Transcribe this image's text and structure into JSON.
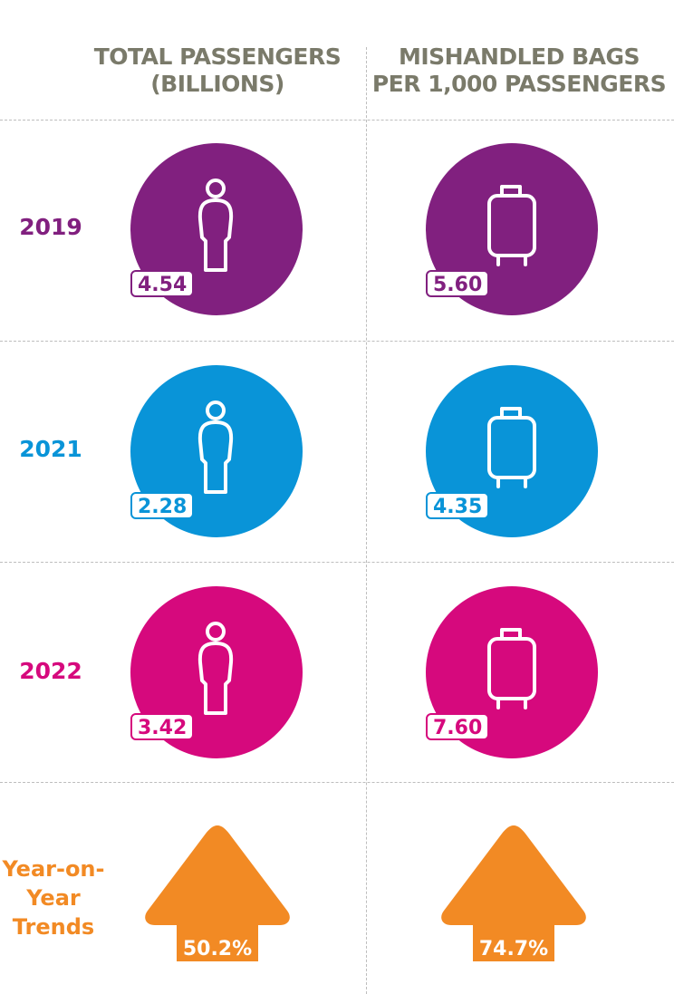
{
  "chart_data": {
    "type": "table",
    "columns": [
      {
        "header_line1": "TOTAL PASSENGERS",
        "header_line2": "(BILLIONS)"
      },
      {
        "header_line1": "MISHANDLED BAGS",
        "header_line2": "PER 1,000 PASSENGERS"
      }
    ],
    "rows": [
      {
        "label": "2019",
        "color": "#81207f",
        "values": [
          "4.54",
          "5.60"
        ]
      },
      {
        "label": "2021",
        "color": "#0994d8",
        "values": [
          "2.28",
          "4.35"
        ]
      },
      {
        "label": "2022",
        "color": "#d6097d",
        "values": [
          "3.42",
          "7.60"
        ]
      }
    ],
    "trend": {
      "label_lines": [
        "Year-on-",
        "Year",
        "Trends"
      ],
      "color": "#f28a24",
      "values": [
        "50.2%",
        "74.7%"
      ]
    }
  },
  "icons": {
    "passengers": "person-icon",
    "bags": "luggage-icon",
    "trend": "up-arrow-icon"
  }
}
